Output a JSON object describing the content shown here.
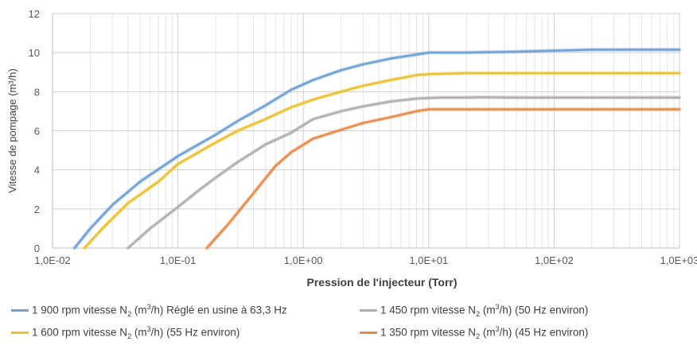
{
  "chart_data": {
    "type": "line",
    "xscale": "log",
    "xlabel": "Pression de l'injecteur (Torr)",
    "ylabel": "Vitesse de pompage (m³/h)",
    "xlim": [
      0.01,
      1000
    ],
    "ylim": [
      0,
      12
    ],
    "x_ticks": [
      "1,0E-02",
      "1,0E-01",
      "1,0E+00",
      "1,0E+01",
      "1,0E+02",
      "1,0E+03"
    ],
    "y_ticks": [
      "0",
      "2",
      "4",
      "6",
      "8",
      "10",
      "12"
    ],
    "grid": true,
    "legend_position": "bottom",
    "series": [
      {
        "name": "1 900 rpm vitesse N2 (m3/h) Réglé en usine à 63,3 Hz",
        "legend": {
          "pre": "1 900 rpm vitesse N",
          "sub": "2",
          "mid": " (m",
          "sup": "3",
          "post": "/h) Réglé en usine à 63,3 Hz"
        },
        "color": "#6fa1d4",
        "points": [
          [
            0.015,
            0
          ],
          [
            0.02,
            1.0
          ],
          [
            0.03,
            2.2
          ],
          [
            0.05,
            3.4
          ],
          [
            0.1,
            4.7
          ],
          [
            0.2,
            5.8
          ],
          [
            0.3,
            6.5
          ],
          [
            0.5,
            7.3
          ],
          [
            0.8,
            8.1
          ],
          [
            1.2,
            8.6
          ],
          [
            2,
            9.1
          ],
          [
            3,
            9.4
          ],
          [
            5,
            9.7
          ],
          [
            8,
            9.9
          ],
          [
            10,
            10.0
          ],
          [
            20,
            10.0
          ],
          [
            50,
            10.05
          ],
          [
            100,
            10.1
          ],
          [
            200,
            10.15
          ],
          [
            500,
            10.15
          ],
          [
            1000,
            10.15
          ]
        ]
      },
      {
        "name": "1 600 rpm vitesse N2 (m3/h) (55 Hz environ)",
        "legend": {
          "pre": "1 600 rpm vitesse N",
          "sub": "2",
          "mid": " (m",
          "sup": "3",
          "post": "/h) (55 Hz environ)"
        },
        "color": "#ecc12e",
        "points": [
          [
            0.018,
            0
          ],
          [
            0.025,
            1.0
          ],
          [
            0.04,
            2.3
          ],
          [
            0.07,
            3.4
          ],
          [
            0.1,
            4.3
          ],
          [
            0.2,
            5.4
          ],
          [
            0.3,
            6.0
          ],
          [
            0.5,
            6.6
          ],
          [
            0.8,
            7.2
          ],
          [
            1.2,
            7.6
          ],
          [
            2,
            8.0
          ],
          [
            3,
            8.3
          ],
          [
            5,
            8.6
          ],
          [
            8,
            8.85
          ],
          [
            10,
            8.9
          ],
          [
            20,
            8.95
          ],
          [
            50,
            8.95
          ],
          [
            100,
            8.95
          ],
          [
            500,
            8.95
          ],
          [
            1000,
            8.95
          ]
        ]
      },
      {
        "name": "1 450 rpm vitesse N2 (m3/h) (50 Hz environ)",
        "legend": {
          "pre": "1 450 rpm vitesse N",
          "sub": "2",
          "mid": " (m",
          "sup": "3",
          "post": "/h) (50 Hz environ)"
        },
        "color": "#afafaf",
        "points": [
          [
            0.04,
            0
          ],
          [
            0.06,
            1.0
          ],
          [
            0.1,
            2.1
          ],
          [
            0.15,
            3.0
          ],
          [
            0.2,
            3.6
          ],
          [
            0.3,
            4.4
          ],
          [
            0.5,
            5.3
          ],
          [
            0.8,
            5.9
          ],
          [
            1.2,
            6.6
          ],
          [
            2,
            7.0
          ],
          [
            3,
            7.25
          ],
          [
            5,
            7.5
          ],
          [
            8,
            7.65
          ],
          [
            12,
            7.7
          ],
          [
            20,
            7.7
          ],
          [
            25,
            7.72
          ],
          [
            50,
            7.7
          ],
          [
            100,
            7.7
          ],
          [
            500,
            7.7
          ],
          [
            1000,
            7.7
          ]
        ]
      },
      {
        "name": "1 350 rpm vitesse N2 (m3/h) (45 Hz environ)",
        "legend": {
          "pre": "1 350 rpm vitesse N",
          "sub": "2",
          "mid": " (m",
          "sup": "3",
          "post": "/h) (45 Hz environ)"
        },
        "color": "#e98b4a",
        "points": [
          [
            0.17,
            0
          ],
          [
            0.25,
            1.2
          ],
          [
            0.4,
            2.8
          ],
          [
            0.6,
            4.2
          ],
          [
            0.8,
            4.9
          ],
          [
            1.2,
            5.6
          ],
          [
            2,
            6.05
          ],
          [
            3,
            6.4
          ],
          [
            5,
            6.7
          ],
          [
            8,
            7.0
          ],
          [
            10,
            7.1
          ],
          [
            20,
            7.1
          ],
          [
            50,
            7.1
          ],
          [
            100,
            7.1
          ],
          [
            500,
            7.1
          ],
          [
            1000,
            7.1
          ]
        ]
      }
    ]
  }
}
